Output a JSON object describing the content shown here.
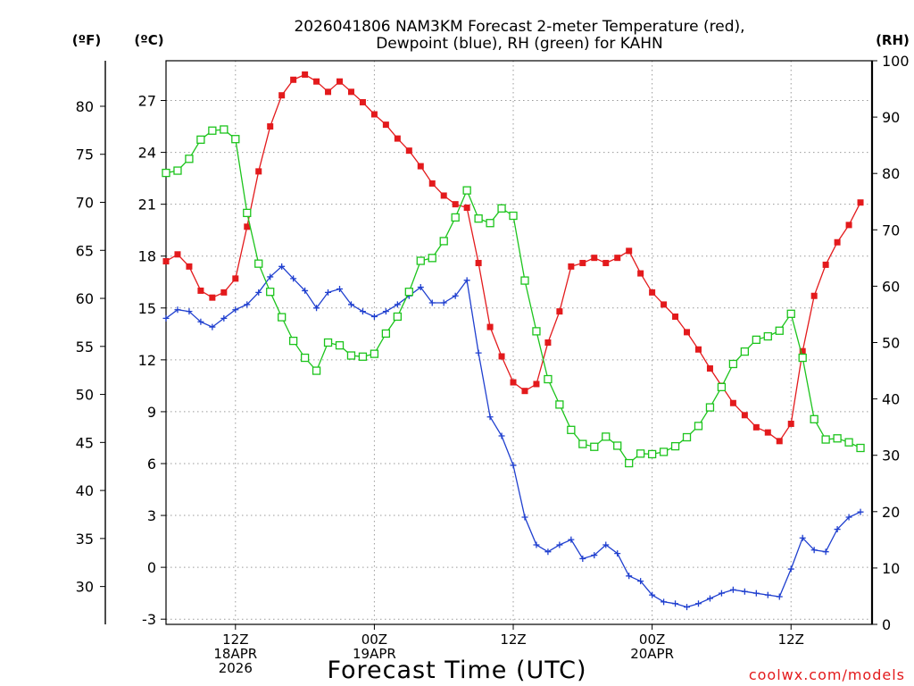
{
  "chart_data": {
    "type": "line",
    "title_line1": "2026041806 NAM3KM Forecast 2-meter Temperature (red),",
    "title_line2": "Dewpoint (blue), RH (green) for KAHN",
    "unit_left_f": "(ºF)",
    "unit_left_c": "(ºC)",
    "unit_right": "(RH)",
    "xlabel": "Forecast Time (UTC)",
    "credit": "coolwx.com/models",
    "x_range_hours": [
      0,
      61
    ],
    "ylim_c": [
      -3.3,
      29.3
    ],
    "ylim_rh": [
      0,
      100
    ],
    "c_ticks": [
      "-3",
      "0",
      "3",
      "6",
      "9",
      "12",
      "15",
      "18",
      "21",
      "24",
      "27"
    ],
    "f_ticks": [
      "30",
      "35",
      "40",
      "45",
      "50",
      "55",
      "60",
      "65",
      "70",
      "75",
      "80"
    ],
    "rh_ticks": [
      "0",
      "10",
      "20",
      "30",
      "40",
      "50",
      "60",
      "70",
      "80",
      "90",
      "100"
    ],
    "x_ticks": [
      {
        "hour": 6,
        "lines": [
          "12Z",
          "18APR",
          "2026"
        ]
      },
      {
        "hour": 18,
        "lines": [
          "00Z",
          "19APR"
        ]
      },
      {
        "hour": 30,
        "lines": [
          "12Z"
        ]
      },
      {
        "hour": 42,
        "lines": [
          "00Z",
          "20APR"
        ]
      },
      {
        "hour": 54,
        "lines": [
          "12Z"
        ]
      }
    ],
    "series": [
      {
        "name": "Temperature",
        "units": "C",
        "color": "#e31a1c",
        "marker": "filled-square",
        "values": [
          17.7,
          18.1,
          17.4,
          16.0,
          15.6,
          15.9,
          16.7,
          19.7,
          22.9,
          25.5,
          27.3,
          28.2,
          28.5,
          28.1,
          27.5,
          28.1,
          27.5,
          26.9,
          26.2,
          25.6,
          24.8,
          24.1,
          23.2,
          22.2,
          21.5,
          21.0,
          20.8,
          17.6,
          13.9,
          12.2,
          10.7,
          10.2,
          10.6,
          13.0,
          14.8,
          17.4,
          17.6,
          17.9,
          17.6,
          17.9,
          18.3,
          17.0,
          15.9,
          15.2,
          14.5,
          13.6,
          12.6,
          11.5,
          10.5,
          9.5,
          8.8,
          8.1,
          7.8,
          7.3,
          8.3,
          12.5,
          15.7,
          17.5,
          18.8,
          19.8,
          21.1
        ]
      },
      {
        "name": "Dewpoint",
        "units": "C",
        "color": "#1f3fcf",
        "marker": "plus",
        "values": [
          14.4,
          14.9,
          14.8,
          14.2,
          13.9,
          14.4,
          14.9,
          15.2,
          15.9,
          16.8,
          17.4,
          16.7,
          16.0,
          15.0,
          15.9,
          16.1,
          15.2,
          14.8,
          14.5,
          14.8,
          15.2,
          15.7,
          16.2,
          15.3,
          15.3,
          15.7,
          16.6,
          12.4,
          8.7,
          7.6,
          5.9,
          2.9,
          1.3,
          0.9,
          1.3,
          1.6,
          0.5,
          0.7,
          1.3,
          0.8,
          -0.5,
          -0.8,
          -1.6,
          -2.0,
          -2.1,
          -2.3,
          -2.1,
          -1.8,
          -1.5,
          -1.3,
          -1.4,
          -1.5,
          -1.6,
          -1.7,
          -0.1,
          1.7,
          1.0,
          0.9,
          2.2,
          2.9,
          3.2
        ]
      },
      {
        "name": "RH",
        "units": "%",
        "color": "#1cc41c",
        "marker": "open-square",
        "values": [
          80.1,
          80.5,
          82.6,
          86.0,
          87.6,
          87.8,
          86.1,
          73.0,
          64.0,
          59.0,
          54.5,
          50.3,
          47.3,
          45.0,
          50.0,
          49.5,
          47.7,
          47.5,
          48.0,
          51.6,
          54.6,
          59.0,
          64.5,
          65.0,
          68.0,
          72.2,
          77.0,
          72.0,
          71.2,
          73.8,
          72.5,
          61.0,
          52.0,
          43.5,
          39.0,
          34.5,
          32.0,
          31.5,
          33.3,
          31.7,
          28.6,
          30.3,
          30.2,
          30.6,
          31.6,
          33.2,
          35.2,
          38.5,
          42.1,
          46.2,
          48.4,
          50.5,
          51.1,
          52.1,
          55.1,
          47.3,
          36.4,
          32.8,
          33.0,
          32.3,
          31.3
        ]
      }
    ]
  }
}
